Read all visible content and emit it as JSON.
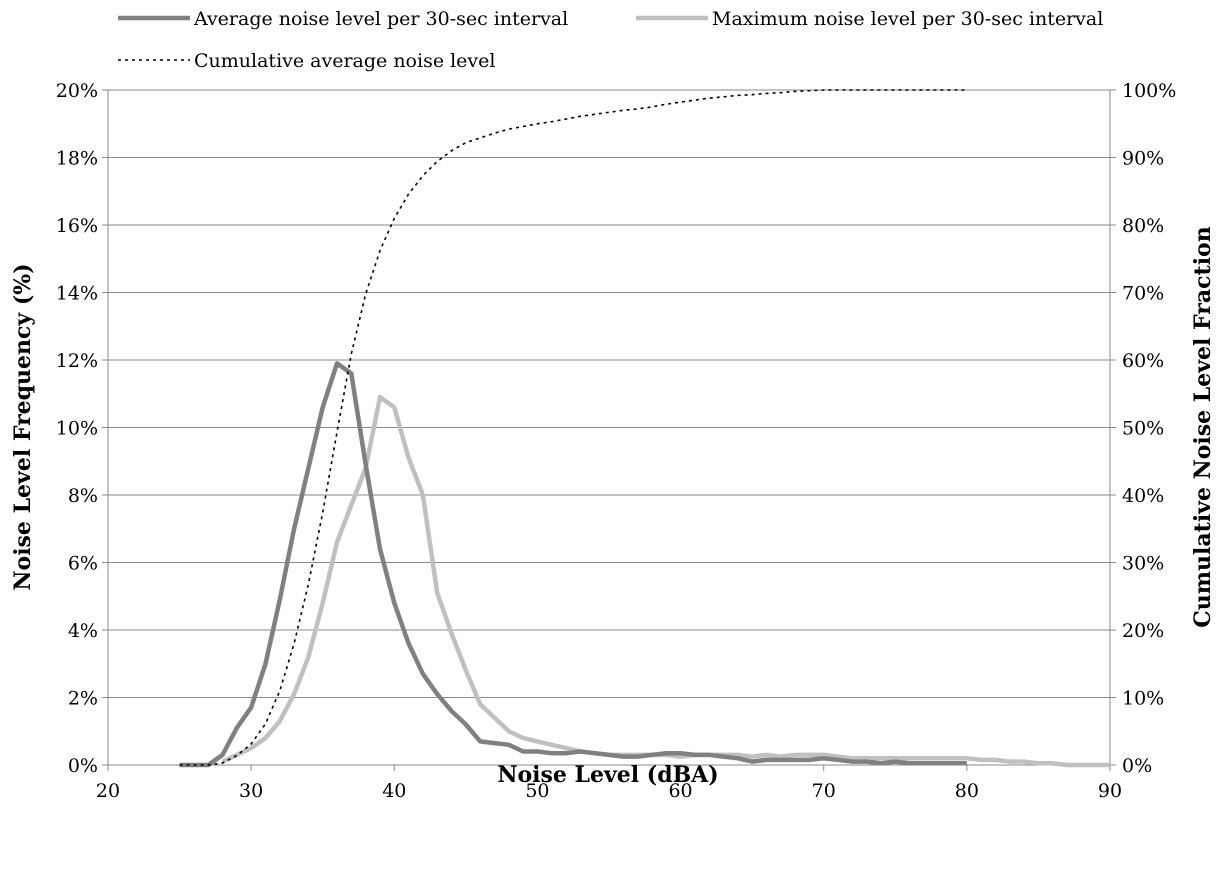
{
  "chart_data": {
    "type": "line",
    "title": "",
    "xlabel": "Noise Level (dBA)",
    "ylabel": "Noise Level Frequency (%)",
    "y2label": "Cumulative Noise Level Fraction",
    "xlim": [
      20,
      90
    ],
    "ylim": [
      0,
      20
    ],
    "y2lim": [
      0,
      100
    ],
    "x_ticks": [
      "20",
      "30",
      "40",
      "50",
      "60",
      "70",
      "80",
      "90"
    ],
    "y_ticks": [
      "0%",
      "2%",
      "4%",
      "6%",
      "8%",
      "10%",
      "12%",
      "14%",
      "16%",
      "18%",
      "20%"
    ],
    "y2_ticks": [
      "0%",
      "10%",
      "20%",
      "30%",
      "40%",
      "50%",
      "60%",
      "70%",
      "80%",
      "90%",
      "100%"
    ],
    "grid": true,
    "legend_position": "top",
    "series": [
      {
        "name": "Average noise level per 30-sec interval",
        "axis": "left",
        "color": "#808080",
        "style": "solid",
        "x": [
          25,
          26,
          27,
          28,
          29,
          30,
          31,
          32,
          33,
          34,
          35,
          36,
          37,
          38,
          39,
          40,
          41,
          42,
          43,
          44,
          45,
          46,
          47,
          48,
          49,
          50,
          51,
          52,
          53,
          54,
          55,
          56,
          57,
          58,
          59,
          60,
          61,
          62,
          63,
          64,
          65,
          66,
          67,
          68,
          69,
          70,
          71,
          72,
          73,
          74,
          75,
          76,
          77,
          78,
          79,
          80
        ],
        "y": [
          0,
          0,
          0,
          0.3,
          1.1,
          1.7,
          3.0,
          4.9,
          7.0,
          8.8,
          10.6,
          11.9,
          11.6,
          8.9,
          6.4,
          4.8,
          3.6,
          2.7,
          2.1,
          1.6,
          1.2,
          0.7,
          0.65,
          0.6,
          0.4,
          0.4,
          0.35,
          0.35,
          0.4,
          0.35,
          0.3,
          0.25,
          0.25,
          0.3,
          0.35,
          0.35,
          0.3,
          0.3,
          0.25,
          0.2,
          0.1,
          0.15,
          0.15,
          0.15,
          0.15,
          0.2,
          0.15,
          0.1,
          0.1,
          0.05,
          0.1,
          0.05,
          0.05,
          0.05,
          0.05,
          0.05
        ]
      },
      {
        "name": "Maximum noise level per 30-sec interval",
        "axis": "left",
        "color": "#c0c0c0",
        "style": "solid",
        "x": [
          28,
          29,
          30,
          31,
          32,
          33,
          34,
          35,
          36,
          37,
          38,
          39,
          40,
          41,
          42,
          43,
          44,
          45,
          46,
          47,
          48,
          49,
          50,
          51,
          52,
          53,
          54,
          55,
          56,
          57,
          58,
          59,
          60,
          61,
          62,
          63,
          64,
          65,
          66,
          67,
          68,
          69,
          70,
          71,
          72,
          73,
          74,
          75,
          76,
          77,
          78,
          79,
          80,
          81,
          82,
          83,
          84,
          85,
          86,
          87,
          88,
          89,
          90
        ],
        "y": [
          0.1,
          0.3,
          0.5,
          0.8,
          1.3,
          2.1,
          3.2,
          4.8,
          6.6,
          7.7,
          8.8,
          10.9,
          10.6,
          9.1,
          8.0,
          5.1,
          3.9,
          2.8,
          1.8,
          1.4,
          1.0,
          0.8,
          0.7,
          0.6,
          0.5,
          0.4,
          0.35,
          0.3,
          0.3,
          0.3,
          0.3,
          0.3,
          0.25,
          0.3,
          0.3,
          0.3,
          0.3,
          0.25,
          0.3,
          0.25,
          0.3,
          0.3,
          0.3,
          0.25,
          0.2,
          0.2,
          0.2,
          0.2,
          0.2,
          0.2,
          0.2,
          0.2,
          0.2,
          0.15,
          0.15,
          0.1,
          0.1,
          0.05,
          0.05,
          0,
          0,
          0,
          0
        ]
      },
      {
        "name": "Cumulative average noise level",
        "axis": "right",
        "color": "#000000",
        "style": "dotted",
        "x": [
          25,
          26,
          27,
          28,
          29,
          30,
          31,
          32,
          33,
          34,
          35,
          36,
          37,
          38,
          39,
          40,
          41,
          42,
          43,
          44,
          45,
          46,
          47,
          48,
          49,
          50,
          51,
          52,
          53,
          54,
          55,
          56,
          57,
          58,
          59,
          60,
          61,
          62,
          63,
          64,
          65,
          66,
          67,
          68,
          69,
          70,
          71,
          72,
          73,
          74,
          75,
          76,
          77,
          78,
          79,
          80
        ],
        "y": [
          0,
          0,
          0,
          0.3,
          1.4,
          3.1,
          6.1,
          11.0,
          18.0,
          26.8,
          37.4,
          49.3,
          60.9,
          69.8,
          76.2,
          81.0,
          84.6,
          87.3,
          89.4,
          91.0,
          92.2,
          92.9,
          93.6,
          94.2,
          94.6,
          95.0,
          95.3,
          95.7,
          96.1,
          96.4,
          96.7,
          97.0,
          97.2,
          97.5,
          97.9,
          98.2,
          98.5,
          98.8,
          99.0,
          99.2,
          99.3,
          99.5,
          99.6,
          99.8,
          99.9,
          100,
          100,
          100,
          100,
          100,
          100,
          100,
          100,
          100,
          100,
          100
        ]
      }
    ]
  }
}
